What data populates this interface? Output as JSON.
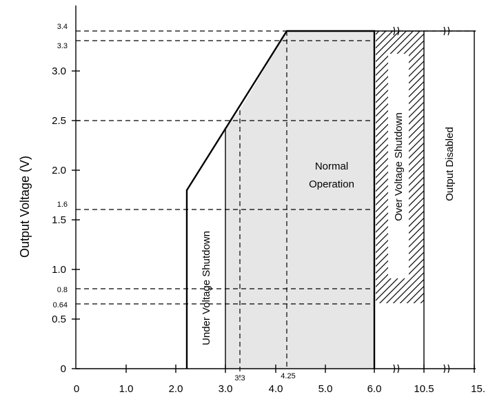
{
  "diagram": {
    "y_axis_label": "Output Voltage (V)",
    "x_axis_label": "",
    "x_ticks": [
      "0",
      "1.0",
      "2.0",
      "3.0",
      "4.0",
      "5.0",
      "6.0",
      "10.5",
      "15."
    ],
    "y_ticks": [
      "0",
      "0.5",
      "1.0",
      "1.5",
      "2.0",
      "2.5",
      "3.0"
    ],
    "y_marker_labels": [
      "3.4",
      "3.3",
      "1.6",
      "0.8",
      "0.64"
    ],
    "x_marker_labels": [
      "3.3",
      "4.25"
    ],
    "regions": {
      "under_voltage": "Under Voltage Shutdown",
      "normal_line1": "Normal",
      "normal_line2": "Operation",
      "over_voltage": "Over Voltage Shutdown",
      "output_disabled": "Output Disabled"
    },
    "colors": {
      "normal_fill": "#e6e6e6",
      "line": "#000000",
      "hatch": "#000000"
    }
  }
}
